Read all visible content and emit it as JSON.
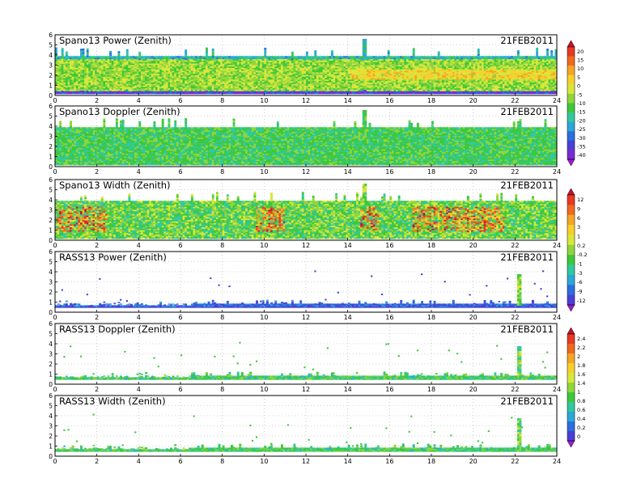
{
  "chart_data": [
    {
      "type": "heatmap",
      "title": "Spano13 Power (Zenith)",
      "date_label": "21FEB2011",
      "xlim": [
        0,
        24
      ],
      "ylim": [
        0,
        6
      ],
      "x_ticks": [
        "0",
        "2",
        "4",
        "6",
        "8",
        "10",
        "12",
        "14",
        "16",
        "18",
        "20",
        "22",
        "24"
      ],
      "y_ticks": [
        "0",
        "1",
        "2",
        "3",
        "4",
        "5",
        "6"
      ],
      "grid": true,
      "colorbar_group": 0
    },
    {
      "type": "heatmap",
      "title": "Spano13 Doppler (Zenith)",
      "date_label": "21FEB2011",
      "xlim": [
        0,
        24
      ],
      "ylim": [
        0,
        6
      ],
      "x_ticks": [
        "0",
        "2",
        "4",
        "6",
        "8",
        "10",
        "12",
        "14",
        "16",
        "18",
        "20",
        "22",
        "24"
      ],
      "y_ticks": [
        "0",
        "1",
        "2",
        "3",
        "4",
        "5",
        "6"
      ],
      "grid": true,
      "colorbar_group": 0
    },
    {
      "type": "heatmap",
      "title": "Spano13 Width (Zenith)",
      "date_label": "21FEB2011",
      "xlim": [
        0,
        24
      ],
      "ylim": [
        0,
        6
      ],
      "x_ticks": [
        "0",
        "2",
        "4",
        "6",
        "8",
        "10",
        "12",
        "14",
        "16",
        "18",
        "20",
        "22",
        "24"
      ],
      "y_ticks": [
        "0",
        "1",
        "2",
        "3",
        "4",
        "5",
        "6"
      ],
      "grid": true,
      "colorbar_group": 1
    },
    {
      "type": "heatmap",
      "title": "RASS13 Power (Zenith)",
      "date_label": "21FEB2011",
      "xlim": [
        0,
        24
      ],
      "ylim": [
        0,
        6
      ],
      "x_ticks": [
        "0",
        "2",
        "4",
        "6",
        "8",
        "10",
        "12",
        "14",
        "16",
        "18",
        "20",
        "22",
        "24"
      ],
      "y_ticks": [
        "0",
        "1",
        "2",
        "3",
        "4",
        "5",
        "6"
      ],
      "grid": true,
      "colorbar_group": 1
    },
    {
      "type": "heatmap",
      "title": "RASS13 Doppler (Zenith)",
      "date_label": "21FEB2011",
      "xlim": [
        0,
        24
      ],
      "ylim": [
        0,
        6
      ],
      "x_ticks": [
        "0",
        "2",
        "4",
        "6",
        "8",
        "10",
        "12",
        "14",
        "16",
        "18",
        "20",
        "22",
        "24"
      ],
      "y_ticks": [
        "0",
        "1",
        "2",
        "3",
        "4",
        "5",
        "6"
      ],
      "grid": true,
      "colorbar_group": 2
    },
    {
      "type": "heatmap",
      "title": "RASS13 Width (Zenith)",
      "date_label": "21FEB2011",
      "xlim": [
        0,
        24
      ],
      "ylim": [
        0,
        6
      ],
      "x_ticks": [
        "0",
        "2",
        "4",
        "6",
        "8",
        "10",
        "12",
        "14",
        "16",
        "18",
        "20",
        "22",
        "24"
      ],
      "y_ticks": [
        "0",
        "1",
        "2",
        "3",
        "4",
        "5",
        "6"
      ],
      "grid": true,
      "colorbar_group": 2
    }
  ],
  "colorbars": [
    {
      "labels": [
        "20",
        "15",
        "10",
        "5",
        "0",
        "-5",
        "-10",
        "-15",
        "-20",
        "-25",
        "-30",
        "-35",
        "-40"
      ],
      "colors": [
        "#c8102e",
        "#e83a22",
        "#f06a1e",
        "#f5a623",
        "#f7d02a",
        "#d8e83a",
        "#8fd63a",
        "#3cc83a",
        "#2fc9a0",
        "#2aa8d8",
        "#2a6fe0",
        "#4b3fd8",
        "#7a2ad8",
        "#a41ad0"
      ]
    },
    {
      "labels": [
        "12",
        "9",
        "6",
        "3",
        "1",
        "0.2",
        "-0.2",
        "-1",
        "-3",
        "-6",
        "-9",
        "-12"
      ],
      "colors": [
        "#c8102e",
        "#e83a22",
        "#f06a1e",
        "#f5a623",
        "#f7d02a",
        "#d8e83a",
        "#8fd63a",
        "#3cc83a",
        "#2fc9a0",
        "#2aa8d8",
        "#2a6fe0",
        "#4b3fd8",
        "#a41ad0"
      ]
    },
    {
      "labels": [
        "2.4",
        "2.2",
        "2",
        "1.8",
        "1.6",
        "1.4",
        "1",
        "0.8",
        "0.6",
        "0.4",
        "0.2",
        "0"
      ],
      "colors": [
        "#c8102e",
        "#e83a22",
        "#f06a1e",
        "#f5a623",
        "#f7d02a",
        "#d8e83a",
        "#8fd63a",
        "#3cc83a",
        "#2fc9a0",
        "#2aa8d8",
        "#2a6fe0",
        "#4b3fd8",
        "#a41ad0"
      ]
    }
  ]
}
